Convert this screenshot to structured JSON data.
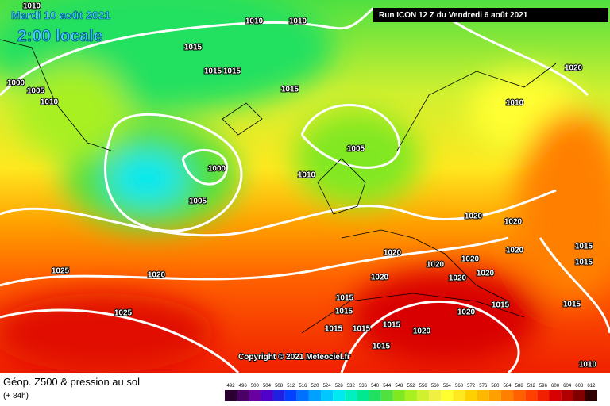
{
  "header": {
    "date": "Mardi 10 août 2021",
    "time": "2:00 locale",
    "run": "Run ICON 12 Z du Vendredi 6 août 2021"
  },
  "copyright": "Copyright © 2021 Meteociel.fr",
  "footer": {
    "title": "Géop. Z500 & pression au sol",
    "lead": "(+ 84h)"
  },
  "legend": {
    "values": [
      492,
      496,
      500,
      504,
      508,
      512,
      516,
      520,
      524,
      528,
      532,
      536,
      540,
      544,
      548,
      552,
      556,
      560,
      564,
      568,
      572,
      576,
      580,
      584,
      588,
      592,
      596,
      600,
      604,
      608,
      612
    ],
    "colors": [
      "#2a0030",
      "#4a0066",
      "#6a00a0",
      "#5000c8",
      "#2020e0",
      "#0040ff",
      "#0070ff",
      "#00a0ff",
      "#00c8ff",
      "#00e8f0",
      "#00f0c0",
      "#00e890",
      "#20e060",
      "#50e040",
      "#80e820",
      "#a8f020",
      "#d0f030",
      "#f0f040",
      "#ffff30",
      "#ffe820",
      "#ffd000",
      "#ffb800",
      "#ffa000",
      "#ff8000",
      "#ff6000",
      "#ff4000",
      "#f02000",
      "#d80000",
      "#b00000",
      "#800000",
      "#300000"
    ]
  },
  "isobars": [
    "1010",
    "1010",
    "1010",
    "1015",
    "1015",
    "1015",
    "1000",
    "1005",
    "1010",
    "1015",
    "1005",
    "1000",
    "1010",
    "1005",
    "1010",
    "1020",
    "1020",
    "1020",
    "1020",
    "1020",
    "1020",
    "1020",
    "1015",
    "1015",
    "1025",
    "1020",
    "1020",
    "1020",
    "1020",
    "1025",
    "1015",
    "1015",
    "1015",
    "1015",
    "1020",
    "1015",
    "1020",
    "1015",
    "1015",
    "1015",
    "1010"
  ]
}
